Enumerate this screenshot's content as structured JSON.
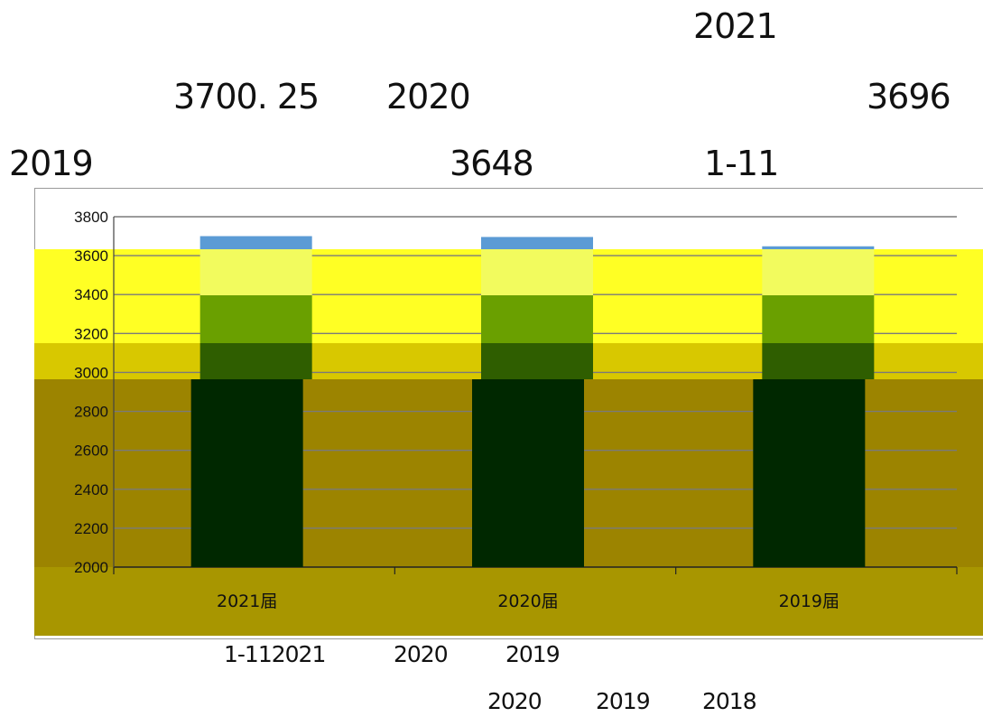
{
  "text": {
    "line1_a": "2021",
    "line2_a": "3700. 25",
    "line2_b": "2020",
    "line2_c": "3696",
    "line3_a": "2019",
    "line3_b": "3648",
    "line3_c": "1-11",
    "caption1_a": "1-112021",
    "caption1_b": "2020",
    "caption1_c": "2019",
    "caption2_a": "2020",
    "caption2_b": "2019",
    "caption2_c": "2018"
  },
  "chart_data": {
    "type": "bar",
    "categories": [
      "2021届",
      "2020届",
      "2019届"
    ],
    "series": [
      {
        "values": [
          3700.25,
          3696,
          3648
        ]
      }
    ],
    "ylim": [
      2000,
      3800
    ],
    "yticks": [
      2000,
      2200,
      2400,
      2600,
      2800,
      3000,
      3200,
      3400,
      3600,
      3800
    ],
    "grid": true,
    "title": "",
    "xlabel": "",
    "ylabel": "",
    "colors": {
      "bar_top": "#5b9bd5",
      "band_light": "#f2fb5e",
      "band_mid": "#6aa000",
      "band_dark": "#2f5e00",
      "band_deep": "#002800",
      "bg_yellow": "#ffff24",
      "bg_gold": "#d8c800",
      "bg_olive": "#9c8400",
      "bg_base": "#a89600",
      "grid": "#7a7a7a",
      "frame": "#9a9a9a"
    }
  }
}
